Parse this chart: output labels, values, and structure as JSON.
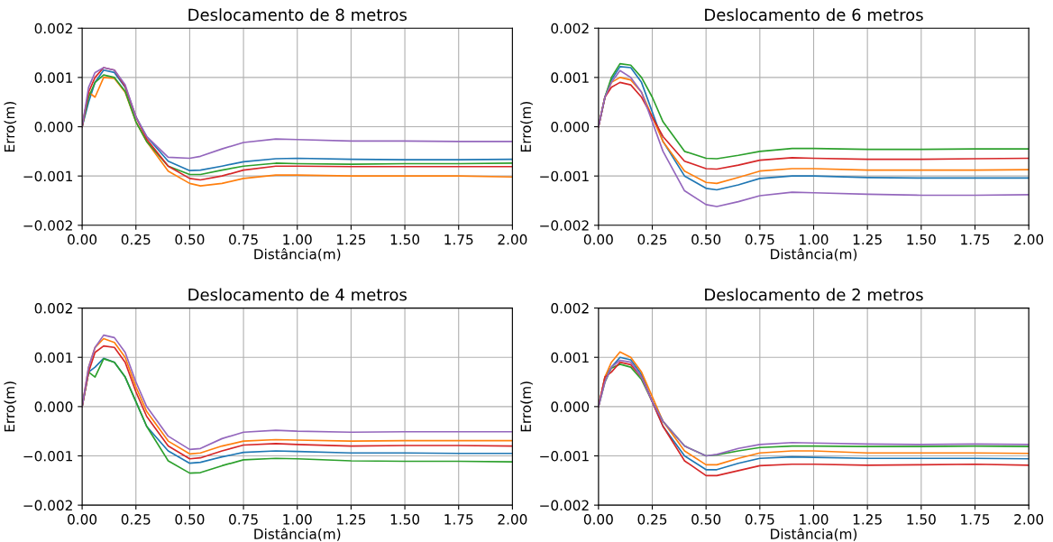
{
  "chart_data": [
    {
      "type": "line",
      "title": "Deslocamento de 8 metros",
      "xlabel": "Distância(m)",
      "ylabel": "Erro(m)",
      "grid": true,
      "line_style": "solid",
      "x": [
        0,
        0.03,
        0.06,
        0.1,
        0.15,
        0.2,
        0.25,
        0.3,
        0.4,
        0.5,
        0.55,
        0.65,
        0.75,
        0.9,
        1.0,
        1.25,
        1.5,
        1.75,
        2.0
      ],
      "xlim": [
        0,
        2
      ],
      "xticks": [
        {
          "value": 0,
          "label": "0.00"
        },
        {
          "value": 0.25,
          "label": "0.25"
        },
        {
          "value": 0.5,
          "label": "0.50"
        },
        {
          "value": 0.75,
          "label": "0.75"
        },
        {
          "value": 1,
          "label": "1.00"
        },
        {
          "value": 1.25,
          "label": "1.25"
        },
        {
          "value": 1.5,
          "label": "1.50"
        },
        {
          "value": 1.75,
          "label": "1.75"
        },
        {
          "value": 2,
          "label": "2.00"
        }
      ],
      "ylim": [
        -0.002,
        0.002
      ],
      "yticks": [
        {
          "value": -0.002,
          "label": "−0.002"
        },
        {
          "value": -0.001,
          "label": "−0.001"
        },
        {
          "value": 0,
          "label": "0.000"
        },
        {
          "value": 0.001,
          "label": "0.001"
        },
        {
          "value": 0.002,
          "label": "0.002"
        }
      ],
      "series": [
        {
          "color": "#1f77b4",
          "values": [
            0,
            0.0005,
            0.0009,
            0.00115,
            0.0011,
            0.0008,
            0.0002,
            -0.0002,
            -0.0007,
            -0.00089,
            -0.00088,
            -0.0008,
            -0.00071,
            -0.00065,
            -0.00064,
            -0.00066,
            -0.00067,
            -0.00067,
            -0.00066
          ]
        },
        {
          "color": "#ff7f0e",
          "values": [
            0,
            0.0007,
            0.0006,
            0.001,
            0.00098,
            0.0007,
            0.0001,
            -0.0003,
            -0.0009,
            -0.00115,
            -0.0012,
            -0.00115,
            -0.00105,
            -0.00098,
            -0.00098,
            -0.001,
            -0.001,
            -0.001,
            -0.00102
          ]
        },
        {
          "color": "#2ca02c",
          "values": [
            0,
            0.0006,
            0.0009,
            0.00105,
            0.001,
            0.00072,
            0.0001,
            -0.0003,
            -0.0008,
            -0.00097,
            -0.00097,
            -0.00088,
            -0.0008,
            -0.00074,
            -0.00075,
            -0.00076,
            -0.00075,
            -0.00075,
            -0.00074
          ]
        },
        {
          "color": "#d62728",
          "values": [
            0,
            0.0007,
            0.001,
            0.0012,
            0.00115,
            0.00082,
            0.0002,
            -0.00025,
            -0.0008,
            -0.00105,
            -0.00108,
            -0.001,
            -0.00088,
            -0.0008,
            -0.0008,
            -0.00081,
            -0.00081,
            -0.00081,
            -0.00081
          ]
        },
        {
          "color": "#9467bd",
          "values": [
            0,
            0.0008,
            0.0011,
            0.0012,
            0.00115,
            0.00085,
            0.0002,
            -0.0002,
            -0.00062,
            -0.00064,
            -0.0006,
            -0.00045,
            -0.00032,
            -0.00025,
            -0.00026,
            -0.00029,
            -0.00029,
            -0.0003,
            -0.0003
          ]
        }
      ]
    },
    {
      "type": "line",
      "title": "Deslocamento de 6 metros",
      "xlabel": "Distância(m)",
      "ylabel": "Erro(m)",
      "grid": true,
      "line_style": "solid",
      "x": [
        0,
        0.03,
        0.06,
        0.1,
        0.15,
        0.2,
        0.25,
        0.3,
        0.4,
        0.5,
        0.55,
        0.65,
        0.75,
        0.9,
        1.0,
        1.25,
        1.5,
        1.75,
        2.0
      ],
      "xlim": [
        0,
        2
      ],
      "xticks": [
        {
          "value": 0,
          "label": "0.00"
        },
        {
          "value": 0.25,
          "label": "0.25"
        },
        {
          "value": 0.5,
          "label": "0.50"
        },
        {
          "value": 0.75,
          "label": "0.75"
        },
        {
          "value": 1,
          "label": "1.00"
        },
        {
          "value": 1.25,
          "label": "1.25"
        },
        {
          "value": 1.5,
          "label": "1.50"
        },
        {
          "value": 1.75,
          "label": "1.75"
        },
        {
          "value": 2,
          "label": "2.00"
        }
      ],
      "ylim": [
        -0.002,
        0.002
      ],
      "yticks": [
        {
          "value": -0.002,
          "label": "−0.002"
        },
        {
          "value": -0.001,
          "label": "−0.001"
        },
        {
          "value": 0,
          "label": "0.000"
        },
        {
          "value": 0.001,
          "label": "0.001"
        },
        {
          "value": 0.002,
          "label": "0.002"
        }
      ],
      "series": [
        {
          "color": "#1f77b4",
          "values": [
            0,
            0.0006,
            0.00095,
            0.00122,
            0.0012,
            0.0009,
            0.0003,
            -0.0003,
            -0.001,
            -0.00125,
            -0.00128,
            -0.00118,
            -0.00105,
            -0.001,
            -0.001,
            -0.00103,
            -0.00104,
            -0.00104,
            -0.00104
          ]
        },
        {
          "color": "#ff7f0e",
          "values": [
            0,
            0.0006,
            0.0009,
            0.001,
            0.00095,
            0.0007,
            0.0002,
            -0.0003,
            -0.0009,
            -0.00113,
            -0.00115,
            -0.00103,
            -0.0009,
            -0.00085,
            -0.00085,
            -0.00088,
            -0.00088,
            -0.00088,
            -0.00087
          ]
        },
        {
          "color": "#2ca02c",
          "values": [
            0,
            0.0006,
            0.001,
            0.00128,
            0.00125,
            0.001,
            0.0006,
            0.0001,
            -0.0005,
            -0.00064,
            -0.00065,
            -0.00058,
            -0.0005,
            -0.00044,
            -0.00044,
            -0.00046,
            -0.00046,
            -0.00045,
            -0.00045
          ]
        },
        {
          "color": "#d62728",
          "values": [
            0,
            0.0006,
            0.0008,
            0.0009,
            0.00085,
            0.0006,
            0.0002,
            -0.0002,
            -0.0007,
            -0.00085,
            -0.00086,
            -0.00078,
            -0.00068,
            -0.00063,
            -0.00064,
            -0.00066,
            -0.00066,
            -0.00065,
            -0.00064
          ]
        },
        {
          "color": "#9467bd",
          "values": [
            0,
            0.0006,
            0.0009,
            0.00114,
            0.001,
            0.0007,
            0.0001,
            -0.0005,
            -0.0013,
            -0.00158,
            -0.00162,
            -0.00152,
            -0.0014,
            -0.00133,
            -0.00134,
            -0.00137,
            -0.00139,
            -0.00139,
            -0.00138
          ]
        }
      ]
    },
    {
      "type": "line",
      "title": "Deslocamento de 4 metros",
      "xlabel": "Distância(m)",
      "ylabel": "Erro(m)",
      "grid": true,
      "line_style": "solid",
      "x": [
        0,
        0.03,
        0.06,
        0.1,
        0.15,
        0.2,
        0.25,
        0.3,
        0.4,
        0.5,
        0.55,
        0.65,
        0.75,
        0.9,
        1.0,
        1.25,
        1.5,
        1.75,
        2.0
      ],
      "xlim": [
        0,
        2
      ],
      "xticks": [
        {
          "value": 0,
          "label": "0.00"
        },
        {
          "value": 0.25,
          "label": "0.25"
        },
        {
          "value": 0.5,
          "label": "0.50"
        },
        {
          "value": 0.75,
          "label": "0.75"
        },
        {
          "value": 1,
          "label": "1.00"
        },
        {
          "value": 1.25,
          "label": "1.25"
        },
        {
          "value": 1.5,
          "label": "1.50"
        },
        {
          "value": 1.75,
          "label": "1.75"
        },
        {
          "value": 2,
          "label": "2.00"
        }
      ],
      "ylim": [
        -0.002,
        0.002
      ],
      "yticks": [
        {
          "value": -0.002,
          "label": "−0.002"
        },
        {
          "value": -0.001,
          "label": "−0.001"
        },
        {
          "value": 0,
          "label": "0.000"
        },
        {
          "value": 0.001,
          "label": "0.001"
        },
        {
          "value": 0.002,
          "label": "0.002"
        }
      ],
      "series": [
        {
          "color": "#1f77b4",
          "values": [
            0,
            0.0007,
            0.0008,
            0.00098,
            0.0009,
            0.0006,
            0.0001,
            -0.0004,
            -0.0009,
            -0.00115,
            -0.00113,
            -0.00102,
            -0.00093,
            -0.0009,
            -0.00091,
            -0.00094,
            -0.00094,
            -0.00095,
            -0.00095
          ]
        },
        {
          "color": "#ff7f0e",
          "values": [
            0,
            0.0008,
            0.0012,
            0.00138,
            0.0013,
            0.001,
            0.0004,
            -0.0001,
            -0.0007,
            -0.00096,
            -0.00094,
            -0.0008,
            -0.0007,
            -0.00067,
            -0.00068,
            -0.0007,
            -0.00069,
            -0.00069,
            -0.00069
          ]
        },
        {
          "color": "#2ca02c",
          "values": [
            0,
            0.0007,
            0.0006,
            0.00097,
            0.0009,
            0.0006,
            0.0001,
            -0.0004,
            -0.0011,
            -0.00135,
            -0.00134,
            -0.0012,
            -0.00108,
            -0.00105,
            -0.00106,
            -0.0011,
            -0.00111,
            -0.00111,
            -0.00112
          ]
        },
        {
          "color": "#d62728",
          "values": [
            0,
            0.0007,
            0.0011,
            0.00123,
            0.0012,
            0.0009,
            0.0003,
            -0.0002,
            -0.0008,
            -0.00106,
            -0.00104,
            -0.0009,
            -0.00078,
            -0.00075,
            -0.00077,
            -0.0008,
            -0.00079,
            -0.00079,
            -0.0008
          ]
        },
        {
          "color": "#9467bd",
          "values": [
            0,
            0.0008,
            0.0012,
            0.00145,
            0.0014,
            0.0011,
            0.0005,
            0,
            -0.0006,
            -0.00087,
            -0.00085,
            -0.00065,
            -0.00052,
            -0.00048,
            -0.0005,
            -0.00052,
            -0.00051,
            -0.00051,
            -0.00051
          ]
        }
      ]
    },
    {
      "type": "line",
      "title": "Deslocamento de 2 metros",
      "xlabel": "Distância(m)",
      "ylabel": "Erro(m)",
      "grid": true,
      "line_style": "solid",
      "x": [
        0,
        0.03,
        0.06,
        0.1,
        0.15,
        0.2,
        0.25,
        0.3,
        0.4,
        0.5,
        0.55,
        0.65,
        0.75,
        0.9,
        1.0,
        1.25,
        1.5,
        1.75,
        2.0
      ],
      "xlim": [
        0,
        2
      ],
      "xticks": [
        {
          "value": 0,
          "label": "0.00"
        },
        {
          "value": 0.25,
          "label": "0.25"
        },
        {
          "value": 0.5,
          "label": "0.50"
        },
        {
          "value": 0.75,
          "label": "0.75"
        },
        {
          "value": 1,
          "label": "1.00"
        },
        {
          "value": 1.25,
          "label": "1.25"
        },
        {
          "value": 1.5,
          "label": "1.50"
        },
        {
          "value": 1.75,
          "label": "1.75"
        },
        {
          "value": 2,
          "label": "2.00"
        }
      ],
      "ylim": [
        -0.002,
        0.002
      ],
      "yticks": [
        {
          "value": -0.002,
          "label": "−0.002"
        },
        {
          "value": -0.001,
          "label": "−0.001"
        },
        {
          "value": 0,
          "label": "0.000"
        },
        {
          "value": 0.001,
          "label": "0.001"
        },
        {
          "value": 0.002,
          "label": "0.002"
        }
      ],
      "series": [
        {
          "color": "#1f77b4",
          "values": [
            0,
            0.0006,
            0.0008,
            0.001,
            0.00095,
            0.00065,
            0.0001,
            -0.0004,
            -0.001,
            -0.00128,
            -0.00128,
            -0.00115,
            -0.00105,
            -0.00102,
            -0.00103,
            -0.00105,
            -0.00105,
            -0.00105,
            -0.00106
          ]
        },
        {
          "color": "#ff7f0e",
          "values": [
            0,
            0.0006,
            0.0009,
            0.00111,
            0.001,
            0.0007,
            0.0002,
            -0.0003,
            -0.0009,
            -0.00118,
            -0.00118,
            -0.00105,
            -0.00094,
            -0.0009,
            -0.0009,
            -0.00094,
            -0.00094,
            -0.00094,
            -0.00095
          ]
        },
        {
          "color": "#2ca02c",
          "values": [
            0,
            0.0005,
            0.00078,
            0.00086,
            0.0008,
            0.00055,
            0.0001,
            -0.0003,
            -0.0008,
            -0.001,
            -0.00098,
            -0.0009,
            -0.00083,
            -0.0008,
            -0.0008,
            -0.00081,
            -0.00081,
            -0.0008,
            -0.00081
          ]
        },
        {
          "color": "#d62728",
          "values": [
            0,
            0.0006,
            0.0007,
            0.0009,
            0.00085,
            0.0006,
            0.0001,
            -0.0004,
            -0.0011,
            -0.0014,
            -0.0014,
            -0.0013,
            -0.0012,
            -0.00117,
            -0.00117,
            -0.00119,
            -0.00118,
            -0.00117,
            -0.00119
          ]
        },
        {
          "color": "#9467bd",
          "values": [
            0,
            0.0005,
            0.0008,
            0.00094,
            0.0009,
            0.0006,
            0.0001,
            -0.0003,
            -0.0008,
            -0.001,
            -0.00097,
            -0.00085,
            -0.00077,
            -0.00073,
            -0.00074,
            -0.00076,
            -0.00077,
            -0.00076,
            -0.00077
          ]
        }
      ]
    }
  ]
}
